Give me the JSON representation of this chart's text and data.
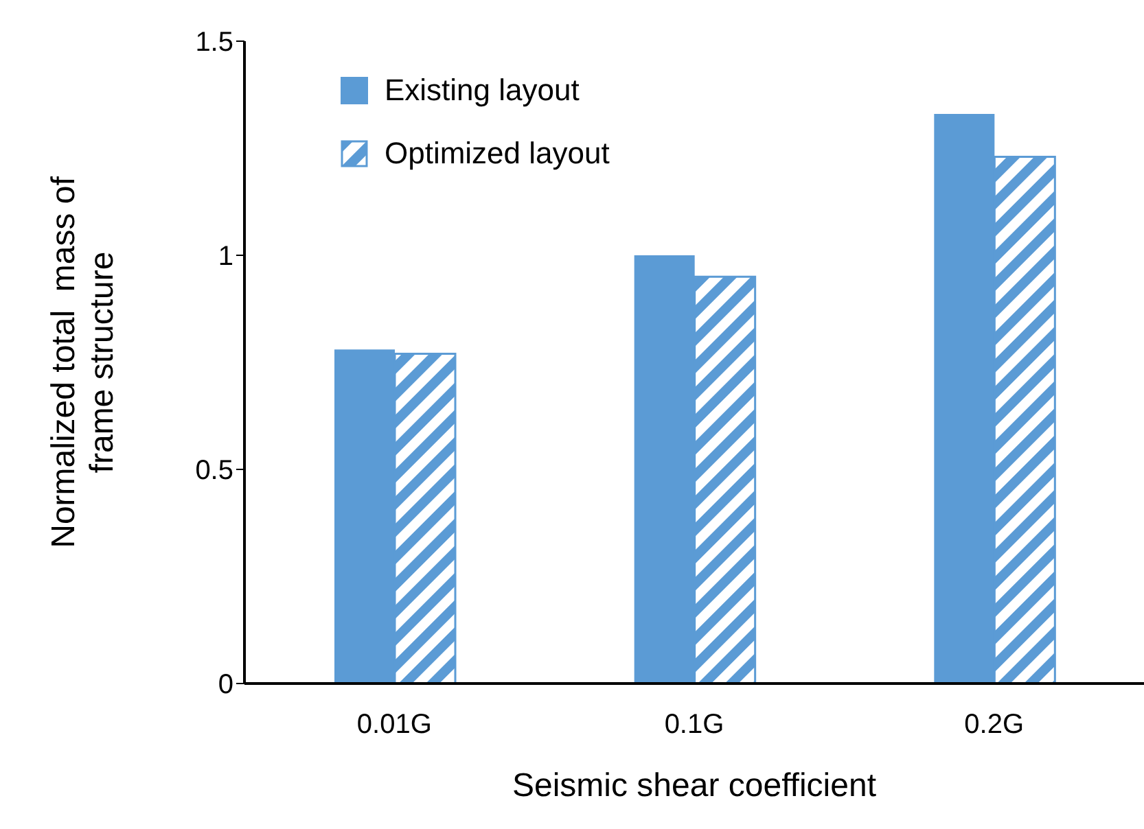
{
  "chart_data": {
    "type": "bar",
    "xlabel": "Seismic shear coefficient",
    "ylabel": "Normalized total  mass of\nframe structure",
    "categories": [
      "0.01G",
      "0.1G",
      "0.2G"
    ],
    "series": [
      {
        "name": "Existing layout",
        "color": "#5b9bd5",
        "values": [
          0.78,
          1.0,
          1.33
        ]
      },
      {
        "name": "Optimized layout",
        "color": "#5b9bd5",
        "values": [
          0.77,
          0.95,
          1.23
        ]
      }
    ],
    "ylim": [
      0,
      1.5
    ],
    "yticks": [
      0,
      0.5,
      1,
      1.5
    ],
    "grid": false,
    "legend": "top left"
  }
}
